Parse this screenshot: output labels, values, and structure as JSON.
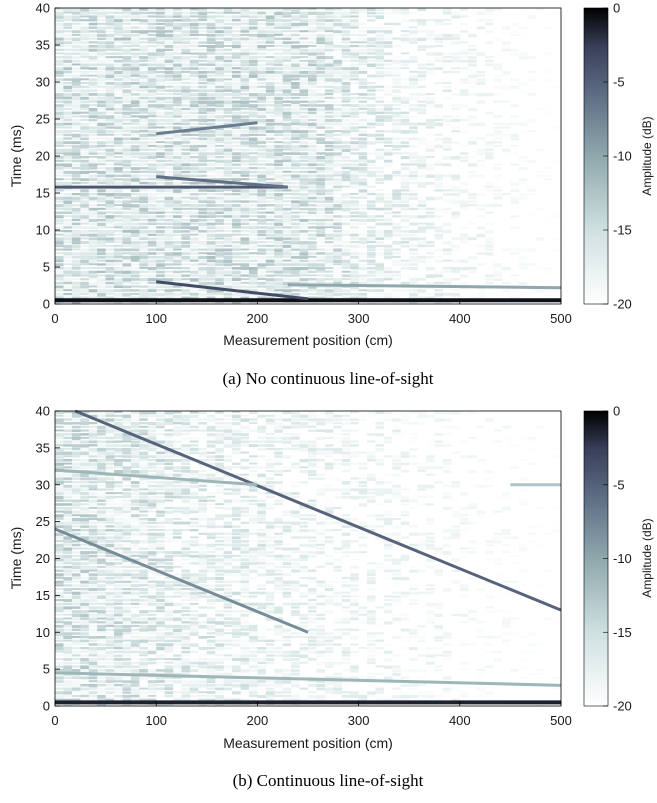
{
  "chart_data": [
    {
      "type": "heatmap",
      "caption": "(a) No continuous line-of-sight",
      "xlabel": "Measurement position (cm)",
      "ylabel": "Time (ms)",
      "xlim": [
        0,
        500
      ],
      "ylim": [
        0,
        40
      ],
      "xticks": [
        "0",
        "100",
        "200",
        "300",
        "400",
        "500"
      ],
      "yticks": [
        "0",
        "5",
        "10",
        "15",
        "20",
        "25",
        "30",
        "35",
        "40"
      ],
      "colorbar": {
        "label": "Amplitude (dB)",
        "range": [
          -20,
          0
        ],
        "ticks": [
          "0",
          "-5",
          "-10",
          "-15",
          "-20"
        ],
        "colormap": [
          "#ffffff",
          "#cfe0e0",
          "#8fa8ac",
          "#5f6f86",
          "#3a3f5a",
          "#000000"
        ]
      },
      "features": [
        {
          "desc": "direct-path band",
          "x": [
            0,
            500
          ],
          "y": [
            0.5,
            0.5
          ],
          "level": -1
        },
        {
          "desc": "strong reflection",
          "x": [
            0,
            230
          ],
          "y": [
            15.8,
            15.8
          ],
          "level": -6
        },
        {
          "desc": "reflection",
          "x": [
            100,
            230
          ],
          "y": [
            17.2,
            15.8
          ],
          "level": -8
        },
        {
          "desc": "reflection",
          "x": [
            100,
            200
          ],
          "y": [
            23,
            24.5
          ],
          "level": -9
        },
        {
          "desc": "reflection",
          "x": [
            100,
            250
          ],
          "y": [
            3,
            0.7
          ],
          "level": -5
        },
        {
          "desc": "reflection",
          "x": [
            230,
            500
          ],
          "y": [
            2.6,
            2.2
          ],
          "level": -12
        }
      ]
    },
    {
      "type": "heatmap",
      "caption": "(b) Continuous line-of-sight",
      "xlabel": "Measurement position (cm)",
      "ylabel": "Time (ms)",
      "xlim": [
        0,
        500
      ],
      "ylim": [
        0,
        40
      ],
      "xticks": [
        "0",
        "100",
        "200",
        "300",
        "400",
        "500"
      ],
      "yticks": [
        "0",
        "5",
        "10",
        "15",
        "20",
        "25",
        "30",
        "35",
        "40"
      ],
      "colorbar": {
        "label": "Amplitude (dB)",
        "range": [
          -20,
          0
        ],
        "ticks": [
          "0",
          "-5",
          "-10",
          "-15",
          "-20"
        ],
        "colormap": [
          "#ffffff",
          "#cfe0e0",
          "#8fa8ac",
          "#5f6f86",
          "#3a3f5a",
          "#000000"
        ]
      },
      "features": [
        {
          "desc": "direct-path band",
          "x": [
            0,
            500
          ],
          "y": [
            0.5,
            0.5
          ],
          "level": -2
        },
        {
          "desc": "moving reflection",
          "x": [
            20,
            500
          ],
          "y": [
            40,
            13
          ],
          "level": -7
        },
        {
          "desc": "reflection",
          "x": [
            0,
            250
          ],
          "y": [
            24,
            10
          ],
          "level": -10
        },
        {
          "desc": "reflection",
          "x": [
            0,
            200
          ],
          "y": [
            32,
            30
          ],
          "level": -13
        },
        {
          "desc": "reflection",
          "x": [
            450,
            500
          ],
          "y": [
            30,
            30
          ],
          "level": -14
        },
        {
          "desc": "reflection",
          "x": [
            0,
            500
          ],
          "y": [
            4.5,
            2.8
          ],
          "level": -13
        }
      ]
    }
  ]
}
